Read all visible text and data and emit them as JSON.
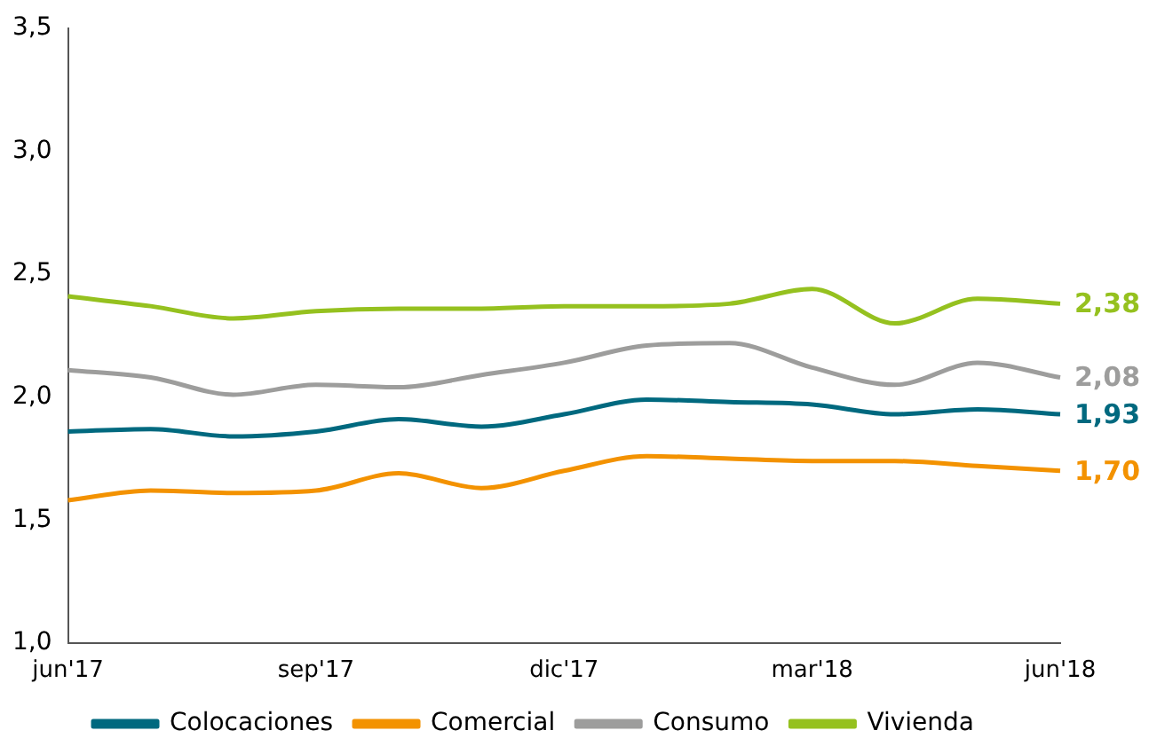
{
  "chart_data": {
    "type": "line",
    "categories": [
      "jun'17",
      null,
      null,
      "sep'17",
      null,
      null,
      "dic'17",
      null,
      null,
      "mar'18",
      null,
      null,
      "jun'18"
    ],
    "series": [
      {
        "name": "Colocaciones",
        "color": "#00697f",
        "values": [
          1.86,
          1.87,
          1.84,
          1.86,
          1.91,
          1.88,
          1.93,
          1.99,
          1.98,
          1.97,
          1.93,
          1.95,
          1.93
        ],
        "value_labels": [
          null,
          null,
          null,
          null,
          null,
          null,
          null,
          null,
          null,
          null,
          null,
          null,
          "1,93"
        ]
      },
      {
        "name": "Comercial",
        "color": "#f39200",
        "values": [
          1.58,
          1.62,
          1.61,
          1.62,
          1.69,
          1.63,
          1.7,
          1.76,
          1.75,
          1.74,
          1.74,
          1.72,
          1.7
        ],
        "value_labels": [
          null,
          null,
          null,
          null,
          null,
          null,
          null,
          null,
          null,
          null,
          null,
          null,
          "1,70"
        ]
      },
      {
        "name": "Consumo",
        "color": "#9d9d9c",
        "values": [
          2.11,
          2.08,
          2.01,
          2.05,
          2.04,
          2.09,
          2.14,
          2.21,
          2.22,
          2.12,
          2.05,
          2.14,
          2.08
        ],
        "value_labels": [
          null,
          null,
          null,
          null,
          null,
          null,
          null,
          null,
          null,
          null,
          null,
          null,
          "2,08"
        ]
      },
      {
        "name": "Vivienda",
        "color": "#95c11f",
        "values": [
          2.41,
          2.37,
          2.32,
          2.35,
          2.36,
          2.36,
          2.37,
          2.37,
          2.38,
          2.44,
          2.3,
          2.4,
          2.38
        ],
        "value_labels": [
          null,
          null,
          null,
          null,
          null,
          null,
          null,
          null,
          null,
          null,
          null,
          null,
          "2,38"
        ]
      }
    ],
    "ylim": [
      1.0,
      3.5
    ],
    "yticks": [
      {
        "value": 1.0,
        "label": "1,0"
      },
      {
        "value": 1.5,
        "label": "1,5"
      },
      {
        "value": 2.0,
        "label": "2,0"
      },
      {
        "value": 2.5,
        "label": "2,5"
      },
      {
        "value": 3.0,
        "label": "3,0"
      },
      {
        "value": 3.5,
        "label": "3,5"
      }
    ],
    "grid": false,
    "legend": "bottom",
    "marker": "none",
    "line_style": "solid"
  }
}
